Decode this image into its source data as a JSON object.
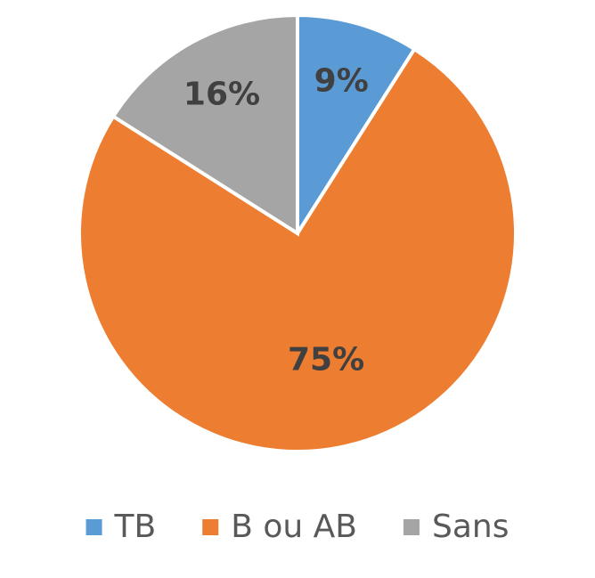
{
  "chart_data": {
    "type": "pie",
    "categories": [
      "TB",
      "B ou AB",
      "Sans"
    ],
    "values": [
      9,
      75,
      16
    ],
    "value_labels": [
      "9%",
      "75%",
      "16%"
    ],
    "colors": [
      "#5b9bd5",
      "#ed7d31",
      "#a5a5a5"
    ],
    "legend": "bottom"
  }
}
